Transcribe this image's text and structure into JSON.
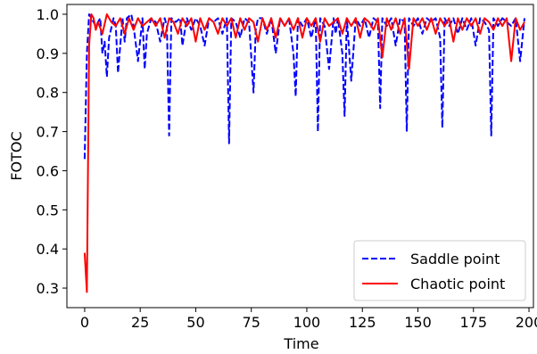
{
  "chart_data": {
    "type": "line",
    "title": "",
    "xlabel": "Time",
    "ylabel": "FOTOC",
    "xlim": [
      -8,
      202
    ],
    "ylim": [
      0.25,
      1.025
    ],
    "xticks": [
      0,
      25,
      50,
      75,
      100,
      125,
      150,
      175,
      200
    ],
    "yticks": [
      0.3,
      0.4,
      0.5,
      0.6,
      0.7,
      0.8,
      0.9,
      1.0
    ],
    "xtick_labels": [
      "0",
      "25",
      "50",
      "75",
      "100",
      "125",
      "150",
      "175",
      "200"
    ],
    "ytick_labels": [
      "0.3",
      "0.4",
      "0.5",
      "0.6",
      "0.7",
      "0.8",
      "0.9",
      "1.0"
    ],
    "grid": false,
    "legend_position": "lower right",
    "series": [
      {
        "name": "Saddle point",
        "color": "#0000ff",
        "style": "dashed",
        "x": [
          0,
          1,
          2,
          3,
          5,
          7,
          8,
          9,
          10,
          11,
          13,
          14,
          15,
          17,
          18,
          19,
          21,
          22,
          24,
          26,
          27,
          28,
          30,
          32,
          34,
          36,
          37,
          38,
          39,
          41,
          43,
          44,
          46,
          48,
          50,
          52,
          54,
          56,
          58,
          60,
          62,
          64,
          65,
          66,
          68,
          70,
          72,
          74,
          76,
          77,
          78,
          80,
          82,
          84,
          86,
          88,
          90,
          92,
          94,
          95,
          96,
          98,
          100,
          102,
          104,
          105,
          106,
          108,
          110,
          112,
          113,
          114,
          116,
          117,
          118,
          120,
          122,
          124,
          126,
          128,
          130,
          132,
          133,
          134,
          136,
          138,
          140,
          142,
          144,
          145,
          146,
          148,
          150,
          152,
          154,
          156,
          158,
          160,
          161,
          162,
          164,
          166,
          168,
          170,
          172,
          174,
          176,
          178,
          180,
          182,
          183,
          184,
          186,
          188,
          190,
          192,
          194,
          196,
          198
        ],
        "y": [
          0.63,
          0.9,
          1.0,
          0.99,
          0.97,
          0.99,
          0.9,
          0.93,
          0.84,
          0.94,
          0.99,
          0.97,
          0.85,
          0.99,
          0.93,
          0.99,
          1.0,
          0.97,
          0.88,
          0.99,
          0.86,
          0.95,
          0.99,
          0.98,
          0.93,
          0.99,
          0.97,
          0.69,
          0.99,
          0.98,
          0.99,
          0.92,
          0.99,
          0.96,
          0.99,
          0.97,
          0.92,
          0.99,
          0.98,
          0.99,
          0.95,
          0.99,
          0.67,
          0.99,
          0.98,
          0.94,
          0.99,
          0.98,
          0.8,
          0.96,
          0.99,
          0.99,
          0.95,
          0.99,
          0.9,
          0.99,
          0.97,
          0.99,
          0.9,
          0.79,
          0.99,
          0.97,
          0.99,
          0.94,
          0.99,
          0.7,
          0.99,
          0.97,
          0.86,
          0.99,
          0.95,
          0.99,
          0.9,
          0.74,
          0.99,
          0.83,
          0.99,
          0.97,
          0.99,
          0.94,
          0.99,
          0.98,
          0.76,
          0.99,
          0.97,
          0.99,
          0.92,
          0.99,
          0.98,
          0.7,
          0.99,
          0.97,
          0.99,
          0.95,
          0.99,
          0.98,
          0.99,
          0.94,
          0.71,
          0.99,
          0.97,
          0.99,
          0.95,
          0.99,
          0.96,
          0.99,
          0.92,
          0.99,
          0.98,
          0.96,
          0.69,
          0.99,
          0.97,
          0.99,
          0.98,
          0.97,
          0.99,
          0.88,
          0.99
        ]
      },
      {
        "name": "Chaotic point",
        "color": "#ff0000",
        "style": "solid",
        "x": [
          0,
          1,
          2,
          3,
          4,
          5,
          6,
          8,
          10,
          12,
          14,
          16,
          18,
          20,
          22,
          24,
          26,
          28,
          30,
          32,
          34,
          36,
          38,
          40,
          42,
          44,
          46,
          48,
          50,
          52,
          54,
          56,
          58,
          60,
          62,
          64,
          66,
          68,
          70,
          72,
          74,
          76,
          78,
          80,
          82,
          84,
          86,
          88,
          90,
          92,
          94,
          96,
          98,
          100,
          102,
          104,
          106,
          108,
          110,
          112,
          114,
          116,
          118,
          120,
          122,
          124,
          126,
          128,
          130,
          132,
          134,
          136,
          138,
          140,
          142,
          144,
          146,
          148,
          150,
          152,
          154,
          156,
          158,
          160,
          162,
          164,
          166,
          168,
          170,
          172,
          174,
          176,
          178,
          180,
          182,
          184,
          186,
          188,
          190,
          192,
          194,
          196,
          198
        ],
        "y": [
          0.39,
          0.29,
          0.92,
          1.0,
          0.99,
          0.96,
          0.98,
          0.95,
          1.0,
          0.98,
          0.97,
          0.99,
          0.95,
          0.99,
          0.96,
          0.99,
          0.97,
          0.98,
          0.99,
          0.97,
          0.99,
          0.94,
          0.99,
          0.98,
          0.95,
          0.99,
          0.97,
          0.99,
          0.93,
          0.99,
          0.96,
          0.99,
          0.98,
          0.95,
          0.99,
          0.97,
          0.99,
          0.94,
          0.99,
          0.96,
          0.99,
          0.98,
          0.93,
          0.99,
          0.96,
          0.99,
          0.94,
          0.99,
          0.97,
          0.99,
          0.96,
          0.99,
          0.94,
          0.99,
          0.97,
          0.99,
          0.93,
          0.99,
          0.97,
          0.98,
          0.99,
          0.95,
          0.99,
          0.97,
          0.99,
          0.94,
          0.99,
          0.98,
          0.96,
          0.99,
          0.89,
          0.99,
          0.96,
          0.99,
          0.95,
          0.99,
          0.86,
          0.99,
          0.97,
          0.99,
          0.96,
          0.99,
          0.95,
          0.99,
          0.97,
          0.99,
          0.93,
          0.99,
          0.96,
          0.99,
          0.97,
          0.99,
          0.95,
          0.99,
          0.98,
          0.96,
          0.99,
          0.97,
          0.99,
          0.88,
          0.99,
          0.96,
          0.98
        ]
      }
    ]
  }
}
